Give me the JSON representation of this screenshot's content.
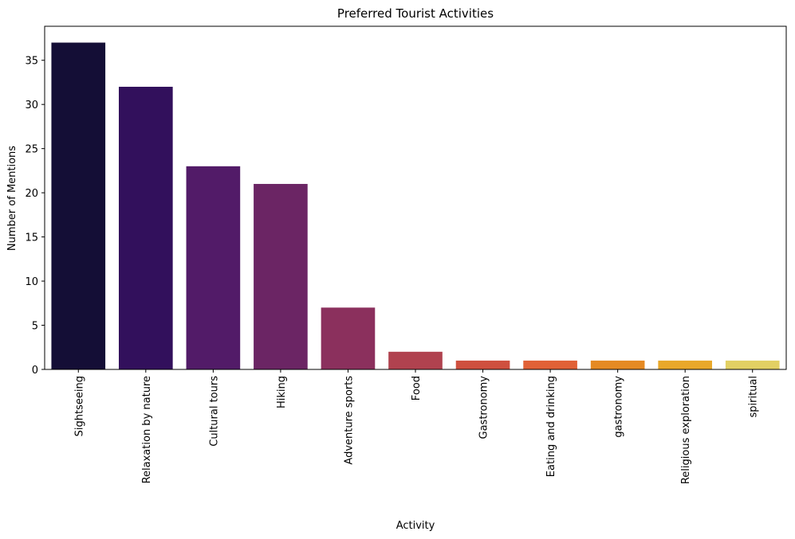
{
  "chart_data": {
    "type": "bar",
    "title": "Preferred Tourist Activities",
    "xlabel": "Activity",
    "ylabel": "Number of Mentions",
    "categories": [
      "Sightseeing",
      "Relaxation by nature",
      "Cultural tours",
      "Hiking",
      "Adventure sports",
      "Food",
      "Gastronomy",
      "Eating and drinking",
      "gastronomy",
      "Religious exploration",
      "spiritual"
    ],
    "values": [
      37,
      32,
      23,
      21,
      7,
      2,
      1,
      1,
      1,
      1,
      1
    ],
    "colors": [
      "#140e36",
      "#32105c",
      "#521b68",
      "#6b2564",
      "#8b305d",
      "#b0424f",
      "#cf503f",
      "#e16136",
      "#e58a23",
      "#e9a82a",
      "#e2d063"
    ],
    "ylim": [
      0,
      38.85
    ],
    "yticks": [
      0,
      5,
      10,
      15,
      20,
      25,
      30,
      35
    ],
    "grid": false,
    "legend": "none"
  }
}
